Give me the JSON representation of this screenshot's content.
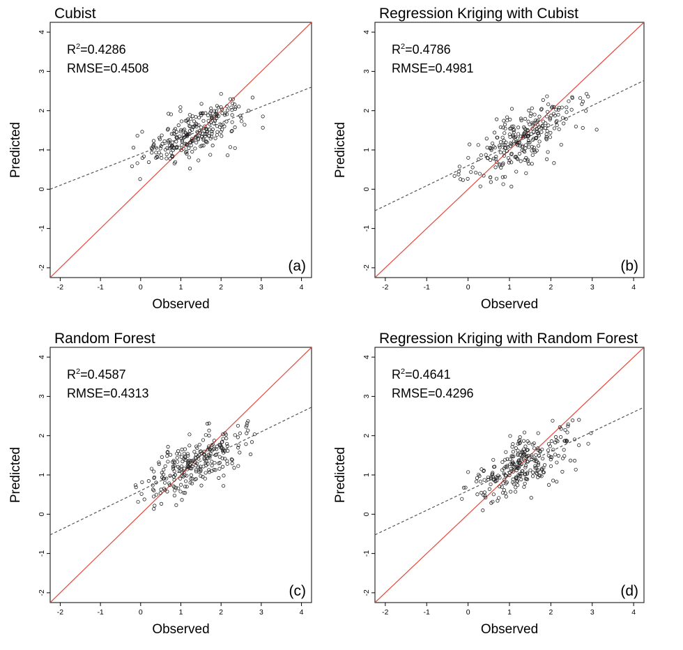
{
  "chart_data": [
    {
      "type": "scatter",
      "panel": "(a)",
      "title": "Cubist",
      "stats": {
        "r2_label": "R",
        "r2_sup": "2",
        "r2_value": "=0.4286",
        "rmse": "RMSE=0.4508"
      },
      "xlabel": "Observed",
      "ylabel": "Predicted",
      "xlim": [
        -2.25,
        4.25
      ],
      "ylim": [
        -2.25,
        4.25
      ],
      "xticks": [
        "-2",
        "-1",
        "0",
        "1",
        "2",
        "3",
        "4"
      ],
      "yticks": [
        "-2",
        "-1",
        "0",
        "1",
        "2",
        "3",
        "4"
      ],
      "one_to_one_line": {
        "color": "#e8463a"
      },
      "fit_line": {
        "intercept": 0.9,
        "slope": 0.4,
        "style": "dashed",
        "color": "#555555"
      },
      "seed": 11,
      "spread": 0.32
    },
    {
      "type": "scatter",
      "panel": "(b)",
      "title": "Regression Kriging with Cubist",
      "stats": {
        "r2_label": "R",
        "r2_sup": "2",
        "r2_value": "=0.4786",
        "rmse": "RMSE=0.4981"
      },
      "xlabel": "Observed",
      "ylabel": "Predicted",
      "xlim": [
        -2.25,
        4.25
      ],
      "ylim": [
        -2.25,
        4.25
      ],
      "xticks": [
        "-2",
        "-1",
        "0",
        "1",
        "2",
        "3",
        "4"
      ],
      "yticks": [
        "-2",
        "-1",
        "0",
        "1",
        "2",
        "3",
        "4"
      ],
      "one_to_one_line": {
        "color": "#e8463a"
      },
      "fit_line": {
        "intercept": 0.6,
        "slope": 0.51,
        "style": "dashed",
        "color": "#555555"
      },
      "seed": 23,
      "spread": 0.36
    },
    {
      "type": "scatter",
      "panel": "(c)",
      "title": "Random Forest",
      "stats": {
        "r2_label": "R",
        "r2_sup": "2",
        "r2_value": "=0.4587",
        "rmse": "RMSE=0.4313"
      },
      "xlabel": "Observed",
      "ylabel": "Predicted",
      "xlim": [
        -2.25,
        4.25
      ],
      "ylim": [
        -2.25,
        4.25
      ],
      "xticks": [
        "-2",
        "-1",
        "0",
        "1",
        "2",
        "3",
        "4"
      ],
      "yticks": [
        "-2",
        "-1",
        "0",
        "1",
        "2",
        "3",
        "4"
      ],
      "one_to_one_line": {
        "color": "#e8463a"
      },
      "fit_line": {
        "intercept": 0.6,
        "slope": 0.5,
        "style": "dashed",
        "color": "#555555"
      },
      "seed": 37,
      "spread": 0.34
    },
    {
      "type": "scatter",
      "panel": "(d)",
      "title": "Regression Kriging with Random Forest",
      "stats": {
        "r2_label": "R",
        "r2_sup": "2",
        "r2_value": "=0.4641",
        "rmse": "RMSE=0.4296"
      },
      "xlabel": "Observed",
      "ylabel": "Predicted",
      "xlim": [
        -2.25,
        4.25
      ],
      "ylim": [
        -2.25,
        4.25
      ],
      "xticks": [
        "-2",
        "-1",
        "0",
        "1",
        "2",
        "3",
        "4"
      ],
      "yticks": [
        "-2",
        "-1",
        "0",
        "1",
        "2",
        "3",
        "4"
      ],
      "one_to_one_line": {
        "color": "#e8463a"
      },
      "fit_line": {
        "intercept": 0.6,
        "slope": 0.5,
        "style": "dashed",
        "color": "#555555"
      },
      "seed": 41,
      "spread": 0.33
    }
  ]
}
